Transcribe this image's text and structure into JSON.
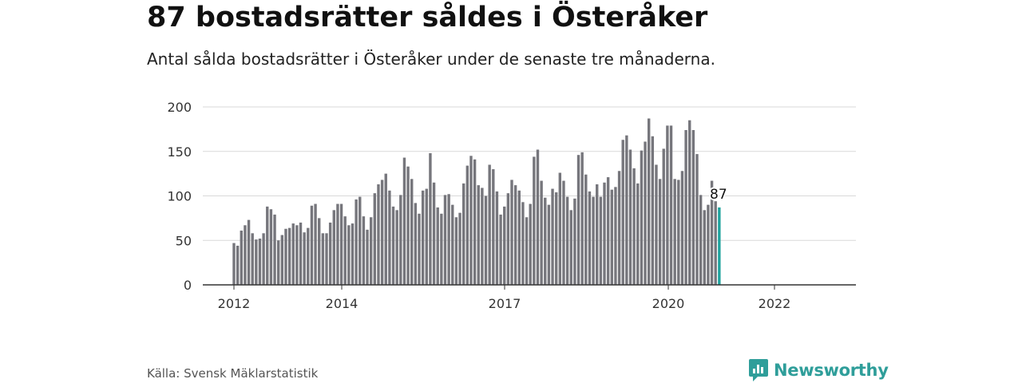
{
  "header": {
    "title": "87 bostadsrätter såldes i Österåker",
    "subtitle": "Antal sålda bostadsrätter i Österåker under de senaste tre månaderna."
  },
  "footer": {
    "source": "Källa: Svensk Mäklarstatistik",
    "brand": "Newsworthy"
  },
  "colors": {
    "bar": "#76767c",
    "highlight": "#1fa39e",
    "grid": "#d9d9d9",
    "axis": "#333333",
    "brand": "#2f9e9a"
  },
  "chart_data": {
    "type": "bar",
    "title": "87 bostadsrätter såldes i Österåker",
    "xlabel": "",
    "ylabel": "",
    "ylim": [
      0,
      200
    ],
    "yticks": [
      0,
      50,
      100,
      150,
      200
    ],
    "xtick_labels": [
      "2012",
      "2014",
      "2017",
      "2020",
      "2022"
    ],
    "grid": true,
    "highlight_label": "87",
    "values": [
      47,
      44,
      61,
      67,
      73,
      58,
      51,
      52,
      58,
      88,
      85,
      79,
      50,
      56,
      63,
      64,
      69,
      67,
      70,
      59,
      64,
      89,
      91,
      75,
      58,
      58,
      70,
      84,
      91,
      91,
      77,
      67,
      69,
      96,
      99,
      77,
      62,
      76,
      103,
      113,
      118,
      125,
      106,
      88,
      84,
      101,
      143,
      133,
      119,
      92,
      80,
      106,
      108,
      148,
      115,
      87,
      80,
      101,
      102,
      90,
      76,
      81,
      114,
      134,
      145,
      141,
      112,
      109,
      100,
      135,
      130,
      105,
      79,
      88,
      103,
      118,
      112,
      106,
      93,
      76,
      91,
      144,
      152,
      117,
      98,
      90,
      108,
      104,
      126,
      117,
      99,
      84,
      97,
      146,
      149,
      124,
      105,
      99,
      113,
      99,
      115,
      121,
      107,
      110,
      128,
      163,
      168,
      152,
      131,
      114,
      151,
      161,
      187,
      167,
      135,
      119,
      153,
      179,
      179,
      119,
      118,
      128,
      174,
      185,
      174,
      147,
      101,
      84,
      90,
      117,
      94,
      87
    ]
  }
}
